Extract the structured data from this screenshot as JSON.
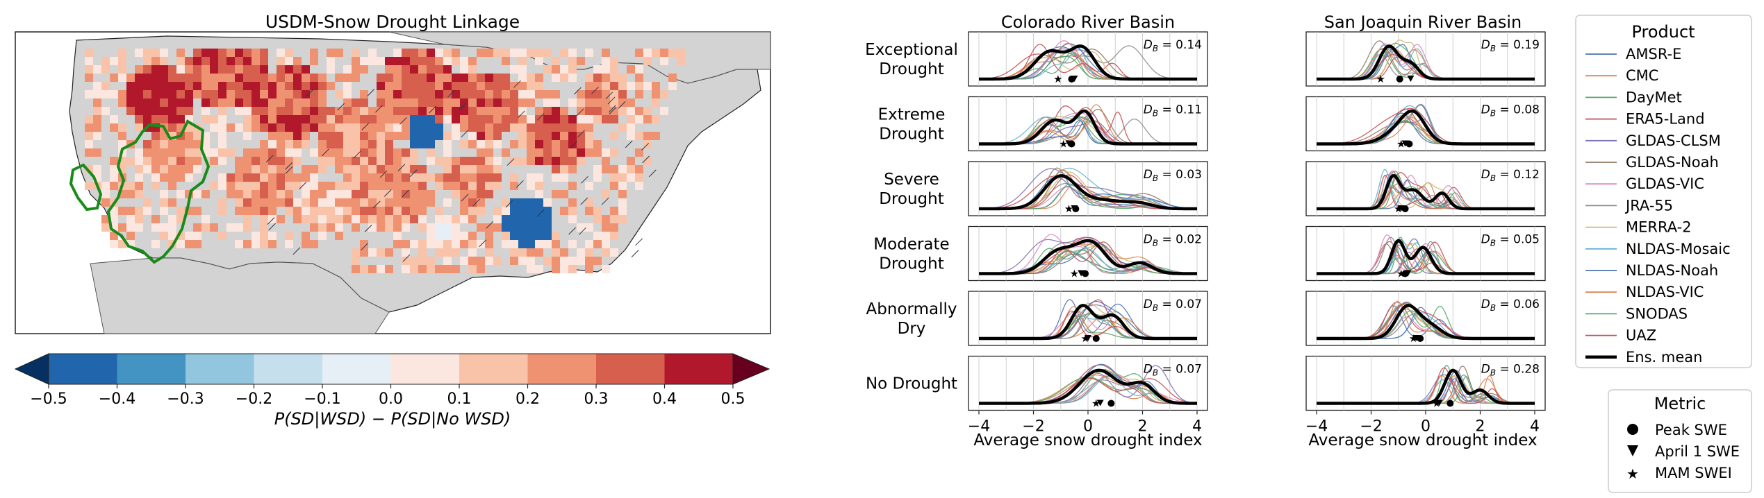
{
  "map": {
    "title": "USDM-Snow Drought Linkage",
    "colorbar_label": "P(SD|WSD) − P(SD|No WSD)",
    "colorbar_ticks": [
      "−0.5",
      "−0.4",
      "−0.3",
      "−0.2",
      "−0.1",
      "0.0",
      "0.1",
      "0.2",
      "0.3",
      "0.4",
      "0.5"
    ],
    "colorbar_colors": [
      "#2166ac",
      "#4393c3",
      "#92c5de",
      "#c5dfec",
      "#e6eff5",
      "#fbe7e0",
      "#f8c3a8",
      "#ef9272",
      "#d6604d",
      "#b2182b"
    ],
    "extend_low_color": "#053061",
    "extend_high_color": "#67001f",
    "land_color": "#d3d3d3",
    "basin_outline_color": "#1a8a1a"
  },
  "basins": [
    {
      "title": "Colorado River Basin",
      "xlabel": "Average snow drought index"
    },
    {
      "title": "San Joaquin River Basin",
      "xlabel": "Average snow drought index"
    }
  ],
  "row_labels": [
    [
      "Exceptional",
      "Drought"
    ],
    [
      "Extreme",
      "Drought"
    ],
    [
      "Severe",
      "Drought"
    ],
    [
      "Moderate",
      "Drought"
    ],
    [
      "Abnormally",
      "Dry"
    ],
    [
      "No Drought"
    ]
  ],
  "db_label": "D",
  "db_sub": "B",
  "legend_product": {
    "title": "Product",
    "items": [
      {
        "name": "AMSR-E",
        "color": "#4c72b0"
      },
      {
        "name": "CMC",
        "color": "#dd8452"
      },
      {
        "name": "DayMet",
        "color": "#55a868"
      },
      {
        "name": "ERA5-Land",
        "color": "#c44e52"
      },
      {
        "name": "GLDAS-CLSM",
        "color": "#8172b3"
      },
      {
        "name": "GLDAS-Noah",
        "color": "#937860"
      },
      {
        "name": "GLDAS-VIC",
        "color": "#da8bc3"
      },
      {
        "name": "JRA-55",
        "color": "#8c8c8c"
      },
      {
        "name": "MERRA-2",
        "color": "#ccb974"
      },
      {
        "name": "NLDAS-Mosaic",
        "color": "#64b5cd"
      },
      {
        "name": "NLDAS-Noah",
        "color": "#4c72b0"
      },
      {
        "name": "NLDAS-VIC",
        "color": "#dd8452"
      },
      {
        "name": "SNODAS",
        "color": "#55a868"
      },
      {
        "name": "UAZ",
        "color": "#c44e52"
      }
    ],
    "mean_label": "Ens. mean"
  },
  "legend_metric": {
    "title": "Metric",
    "items": [
      {
        "name": "Peak SWE",
        "marker": "circle"
      },
      {
        "name": "April 1 SWE",
        "marker": "triangle-down"
      },
      {
        "name": "MAM SWEI",
        "marker": "star"
      }
    ]
  },
  "chart_data": {
    "type": "line",
    "x_range": [
      -4,
      4
    ],
    "x_ticks": [
      -4,
      -2,
      0,
      2,
      4
    ],
    "x_tick_labels": [
      "−4",
      "−2",
      "0",
      "2",
      "4"
    ],
    "vertical_grid": true,
    "series_names": [
      "AMSR-E",
      "CMC",
      "DayMet",
      "ERA5-Land",
      "GLDAS-CLSM",
      "GLDAS-Noah",
      "GLDAS-VIC",
      "JRA-55",
      "MERRA-2",
      "NLDAS-Mosaic",
      "NLDAS-Noah",
      "NLDAS-VIC",
      "SNODAS",
      "UAZ"
    ],
    "panels": [
      [
        {
          "db": "0.14",
          "peaks": [
            [
              -1.4,
              0.55,
              1.0
            ],
            [
              -0.2,
              0.45,
              1.1
            ]
          ],
          "outlier": [
            1.5,
            0.55
          ],
          "markers": [
            -0.6,
            -0.5,
            -1.1
          ]
        },
        {
          "db": "0.19",
          "peaks": [
            [
              -1.35,
              0.35,
              1.0
            ],
            [
              -0.55,
              0.3,
              0.45
            ]
          ],
          "outlier": null,
          "markers": [
            -0.95,
            -0.55,
            -1.65
          ]
        }
      ],
      [
        {
          "db": "0.11",
          "peaks": [
            [
              -1.2,
              0.5,
              0.85
            ],
            [
              -0.1,
              0.35,
              1.1
            ]
          ],
          "outlier": [
            1.7,
            0.4
          ],
          "markers": [
            -0.6,
            -0.7,
            -0.9
          ]
        },
        {
          "db": "0.08",
          "peaks": [
            [
              -0.8,
              0.6,
              0.55
            ],
            [
              -0.4,
              0.4,
              0.6
            ]
          ],
          "outlier": null,
          "markers": [
            -0.6,
            -0.75,
            -0.9
          ]
        }
      ],
      [
        {
          "db": "0.03",
          "peaks": [
            [
              -1.0,
              0.6,
              1.0
            ],
            [
              0.6,
              0.7,
              0.25
            ],
            [
              1.9,
              0.5,
              0.15
            ]
          ],
          "outlier": null,
          "markers": [
            -0.45,
            -0.5,
            -0.7
          ]
        },
        {
          "db": "0.12",
          "peaks": [
            [
              -1.2,
              0.25,
              1.0
            ],
            [
              -0.45,
              0.35,
              0.6
            ],
            [
              0.6,
              0.25,
              0.5
            ]
          ],
          "outlier": null,
          "markers": [
            -0.75,
            -0.9,
            -1.0
          ]
        }
      ],
      [
        {
          "db": "0.02",
          "peaks": [
            [
              -1.1,
              0.55,
              0.7
            ],
            [
              0.1,
              0.55,
              1.0
            ],
            [
              1.9,
              0.45,
              0.35
            ]
          ],
          "outlier": null,
          "markers": [
            -0.1,
            -0.25,
            -0.5
          ]
        },
        {
          "db": "0.05",
          "peaks": [
            [
              -1.0,
              0.25,
              1.0
            ],
            [
              -0.1,
              0.3,
              0.8
            ]
          ],
          "outlier": null,
          "markers": [
            -0.75,
            -0.65,
            -0.9
          ]
        }
      ],
      [
        {
          "db": "0.07",
          "peaks": [
            [
              -0.2,
              0.4,
              1.0
            ],
            [
              0.9,
              0.4,
              0.7
            ]
          ],
          "outlier": null,
          "markers": [
            0.3,
            0.0,
            -0.1
          ]
        },
        {
          "db": "0.06",
          "peaks": [
            [
              -0.7,
              0.4,
              0.9
            ],
            [
              0.1,
              0.45,
              0.4
            ]
          ],
          "outlier": null,
          "markers": [
            -0.2,
            -0.35,
            -0.45
          ]
        }
      ],
      [
        {
          "db": "0.07",
          "peaks": [
            [
              0.4,
              0.7,
              1.0
            ],
            [
              2.0,
              0.45,
              0.55
            ]
          ],
          "outlier": null,
          "markers": [
            0.85,
            0.45,
            0.3
          ]
        },
        {
          "db": "0.28",
          "peaks": [
            [
              1.0,
              0.3,
              1.0
            ],
            [
              2.0,
              0.3,
              0.4
            ]
          ],
          "outlier": null,
          "markers": [
            0.9,
            0.5,
            0.4
          ]
        }
      ]
    ]
  }
}
